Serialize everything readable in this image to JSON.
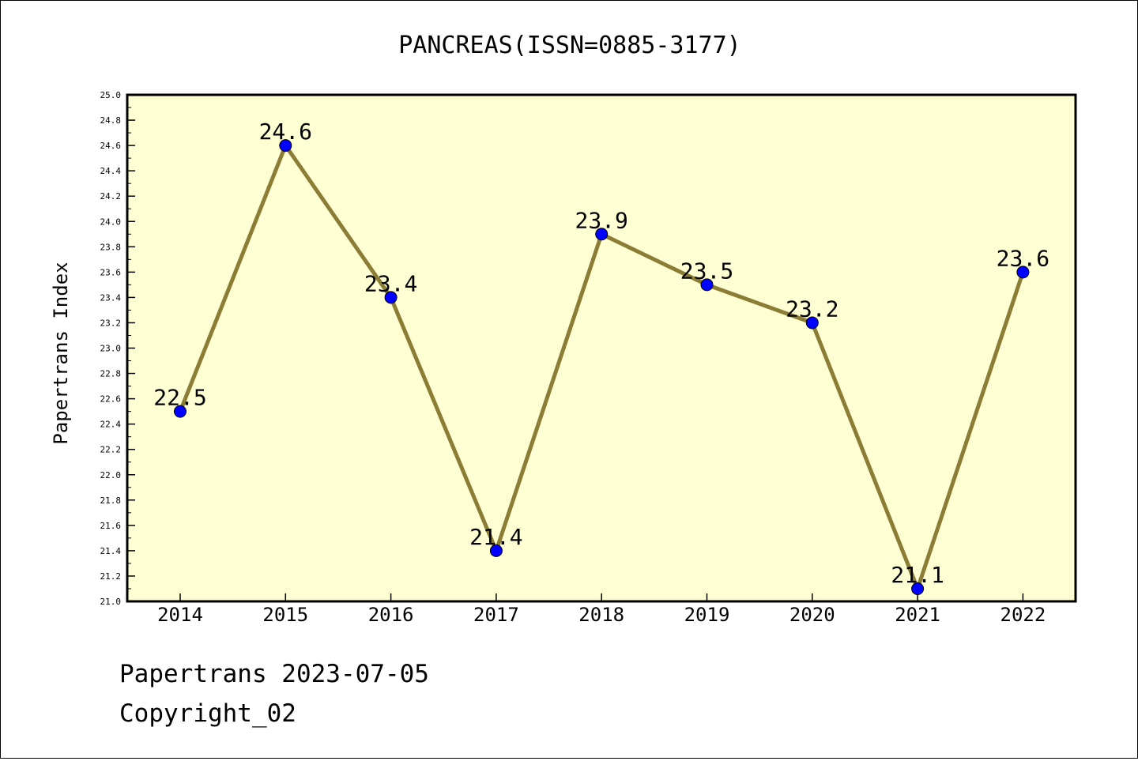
{
  "chart_data": {
    "type": "line",
    "title": "PANCREAS(ISSN=0885-3177)",
    "xlabel": "",
    "ylabel": "Papertrans Index",
    "categories": [
      "2014",
      "2015",
      "2016",
      "2017",
      "2018",
      "2019",
      "2020",
      "2021",
      "2022"
    ],
    "series": [
      {
        "values": [
          22.5,
          24.6,
          23.4,
          21.4,
          23.9,
          23.5,
          23.2,
          21.1,
          23.6
        ],
        "point_labels": [
          "22.5",
          "24.6",
          "23.4",
          "21.4",
          "23.9",
          "23.5",
          "23.2",
          "21.1",
          "23.6"
        ],
        "line_color": "#8b7d35",
        "marker_color": "#0000ff"
      }
    ],
    "ylim": [
      21.0,
      25.0
    ],
    "yticks": [
      "21.0",
      "21.2",
      "21.4",
      "21.6",
      "21.8",
      "22.0",
      "22.2",
      "22.4",
      "22.6",
      "22.8",
      "23.0",
      "23.2",
      "23.4",
      "23.6",
      "23.8",
      "24.0",
      "24.2",
      "24.4",
      "24.6",
      "24.8",
      "25.0"
    ],
    "grid": false,
    "plot_background": "#ffffd4"
  },
  "footer": {
    "date_line": "Papertrans 2023-07-05",
    "copyright_line": "Copyright_02"
  }
}
